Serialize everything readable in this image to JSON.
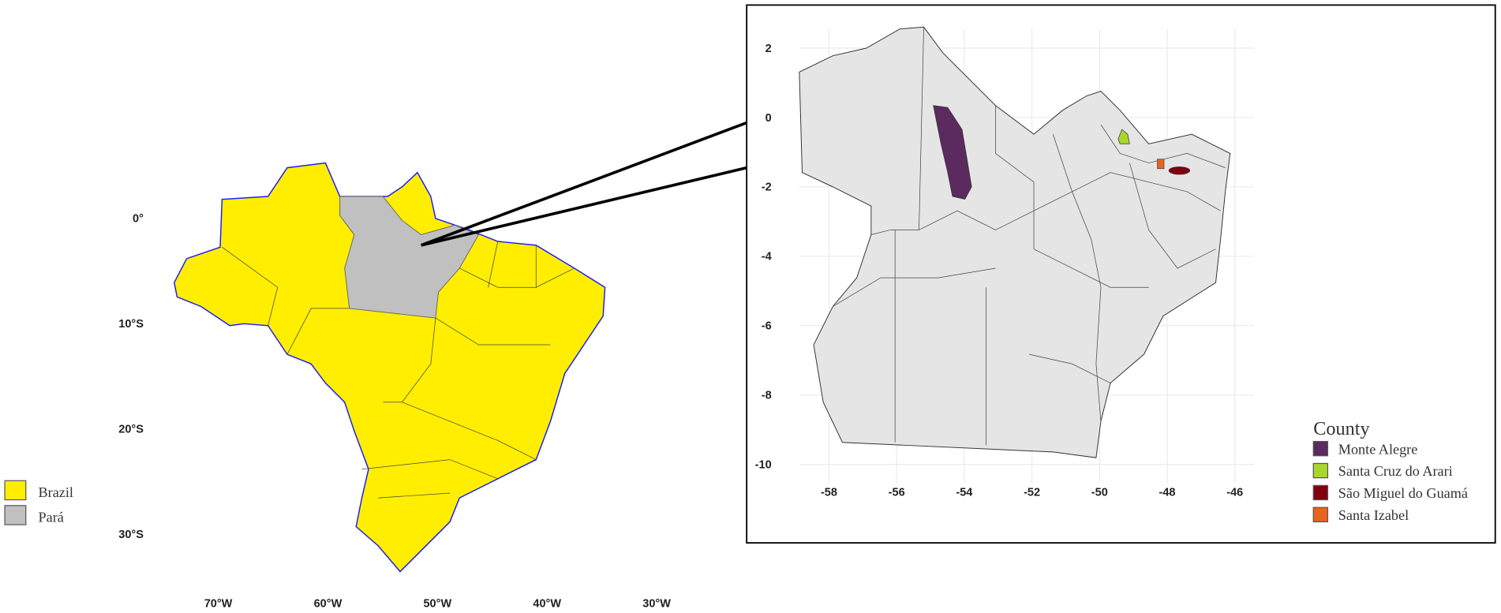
{
  "left_map": {
    "lat_labels": [
      "0°",
      "10°S",
      "20°S",
      "30°S"
    ],
    "lon_labels": [
      "70°W",
      "60°W",
      "50°W",
      "40°W",
      "30°W"
    ],
    "legend": [
      {
        "label": "Brazil",
        "color": "#ffee00"
      },
      {
        "label": "Pará",
        "color": "#c0c0c0"
      }
    ]
  },
  "right_map": {
    "x_ticks": [
      -58,
      -56,
      -54,
      -52,
      -50,
      -48,
      -46
    ],
    "y_ticks": [
      2,
      0,
      -2,
      -4,
      -6,
      -8,
      -10
    ],
    "legend": {
      "title": "County",
      "entries": [
        {
          "label": "Monte Alegre",
          "color": "#5b2a5e"
        },
        {
          "label": "Santa Cruz do Arari",
          "color": "#a9d62c"
        },
        {
          "label": "São Miguel do Guamá",
          "color": "#800010"
        },
        {
          "label": "Santa Izabel",
          "color": "#e8641e"
        }
      ]
    }
  }
}
